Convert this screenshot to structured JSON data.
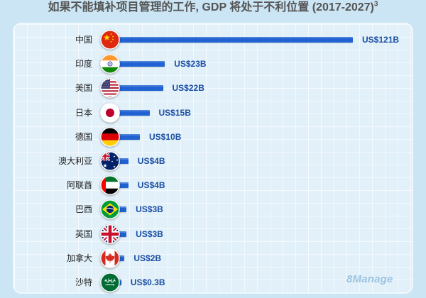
{
  "chart_data": {
    "type": "bar",
    "orientation": "horizontal",
    "title": "如果不能填补项目管理的工作, GDP 将处于不利位置 (2017-2027)",
    "title_superscript": "3",
    "categories": [
      "中国",
      "印度",
      "美国",
      "日本",
      "德国",
      "澳大利亚",
      "阿联酋",
      "巴西",
      "英国",
      "加拿大",
      "沙特"
    ],
    "values": [
      121,
      23,
      22,
      15,
      10,
      4,
      4,
      3,
      3,
      2,
      0.3
    ],
    "value_labels": [
      "US$121B",
      "US$23B",
      "US$22B",
      "US$15B",
      "US$10B",
      "US$4B",
      "US$4B",
      "US$3B",
      "US$3B",
      "US$2B",
      "US$0.3B"
    ],
    "flag_icons": [
      "china-flag-icon",
      "india-flag-icon",
      "usa-flag-icon",
      "japan-flag-icon",
      "germany-flag-icon",
      "australia-flag-icon",
      "uae-flag-icon",
      "brazil-flag-icon",
      "uk-flag-icon",
      "canada-flag-icon",
      "saudi-arabia-flag-icon"
    ],
    "xlim": [
      0,
      121
    ],
    "grid": true,
    "legend": "none"
  },
  "watermark": "8Manage",
  "colors": {
    "background": "#cbe5f4",
    "panel": "#e1f0f9",
    "bar": "#2062d2",
    "value_label": "#1b4ea3",
    "title": "#555555",
    "category_label": "#222222"
  }
}
